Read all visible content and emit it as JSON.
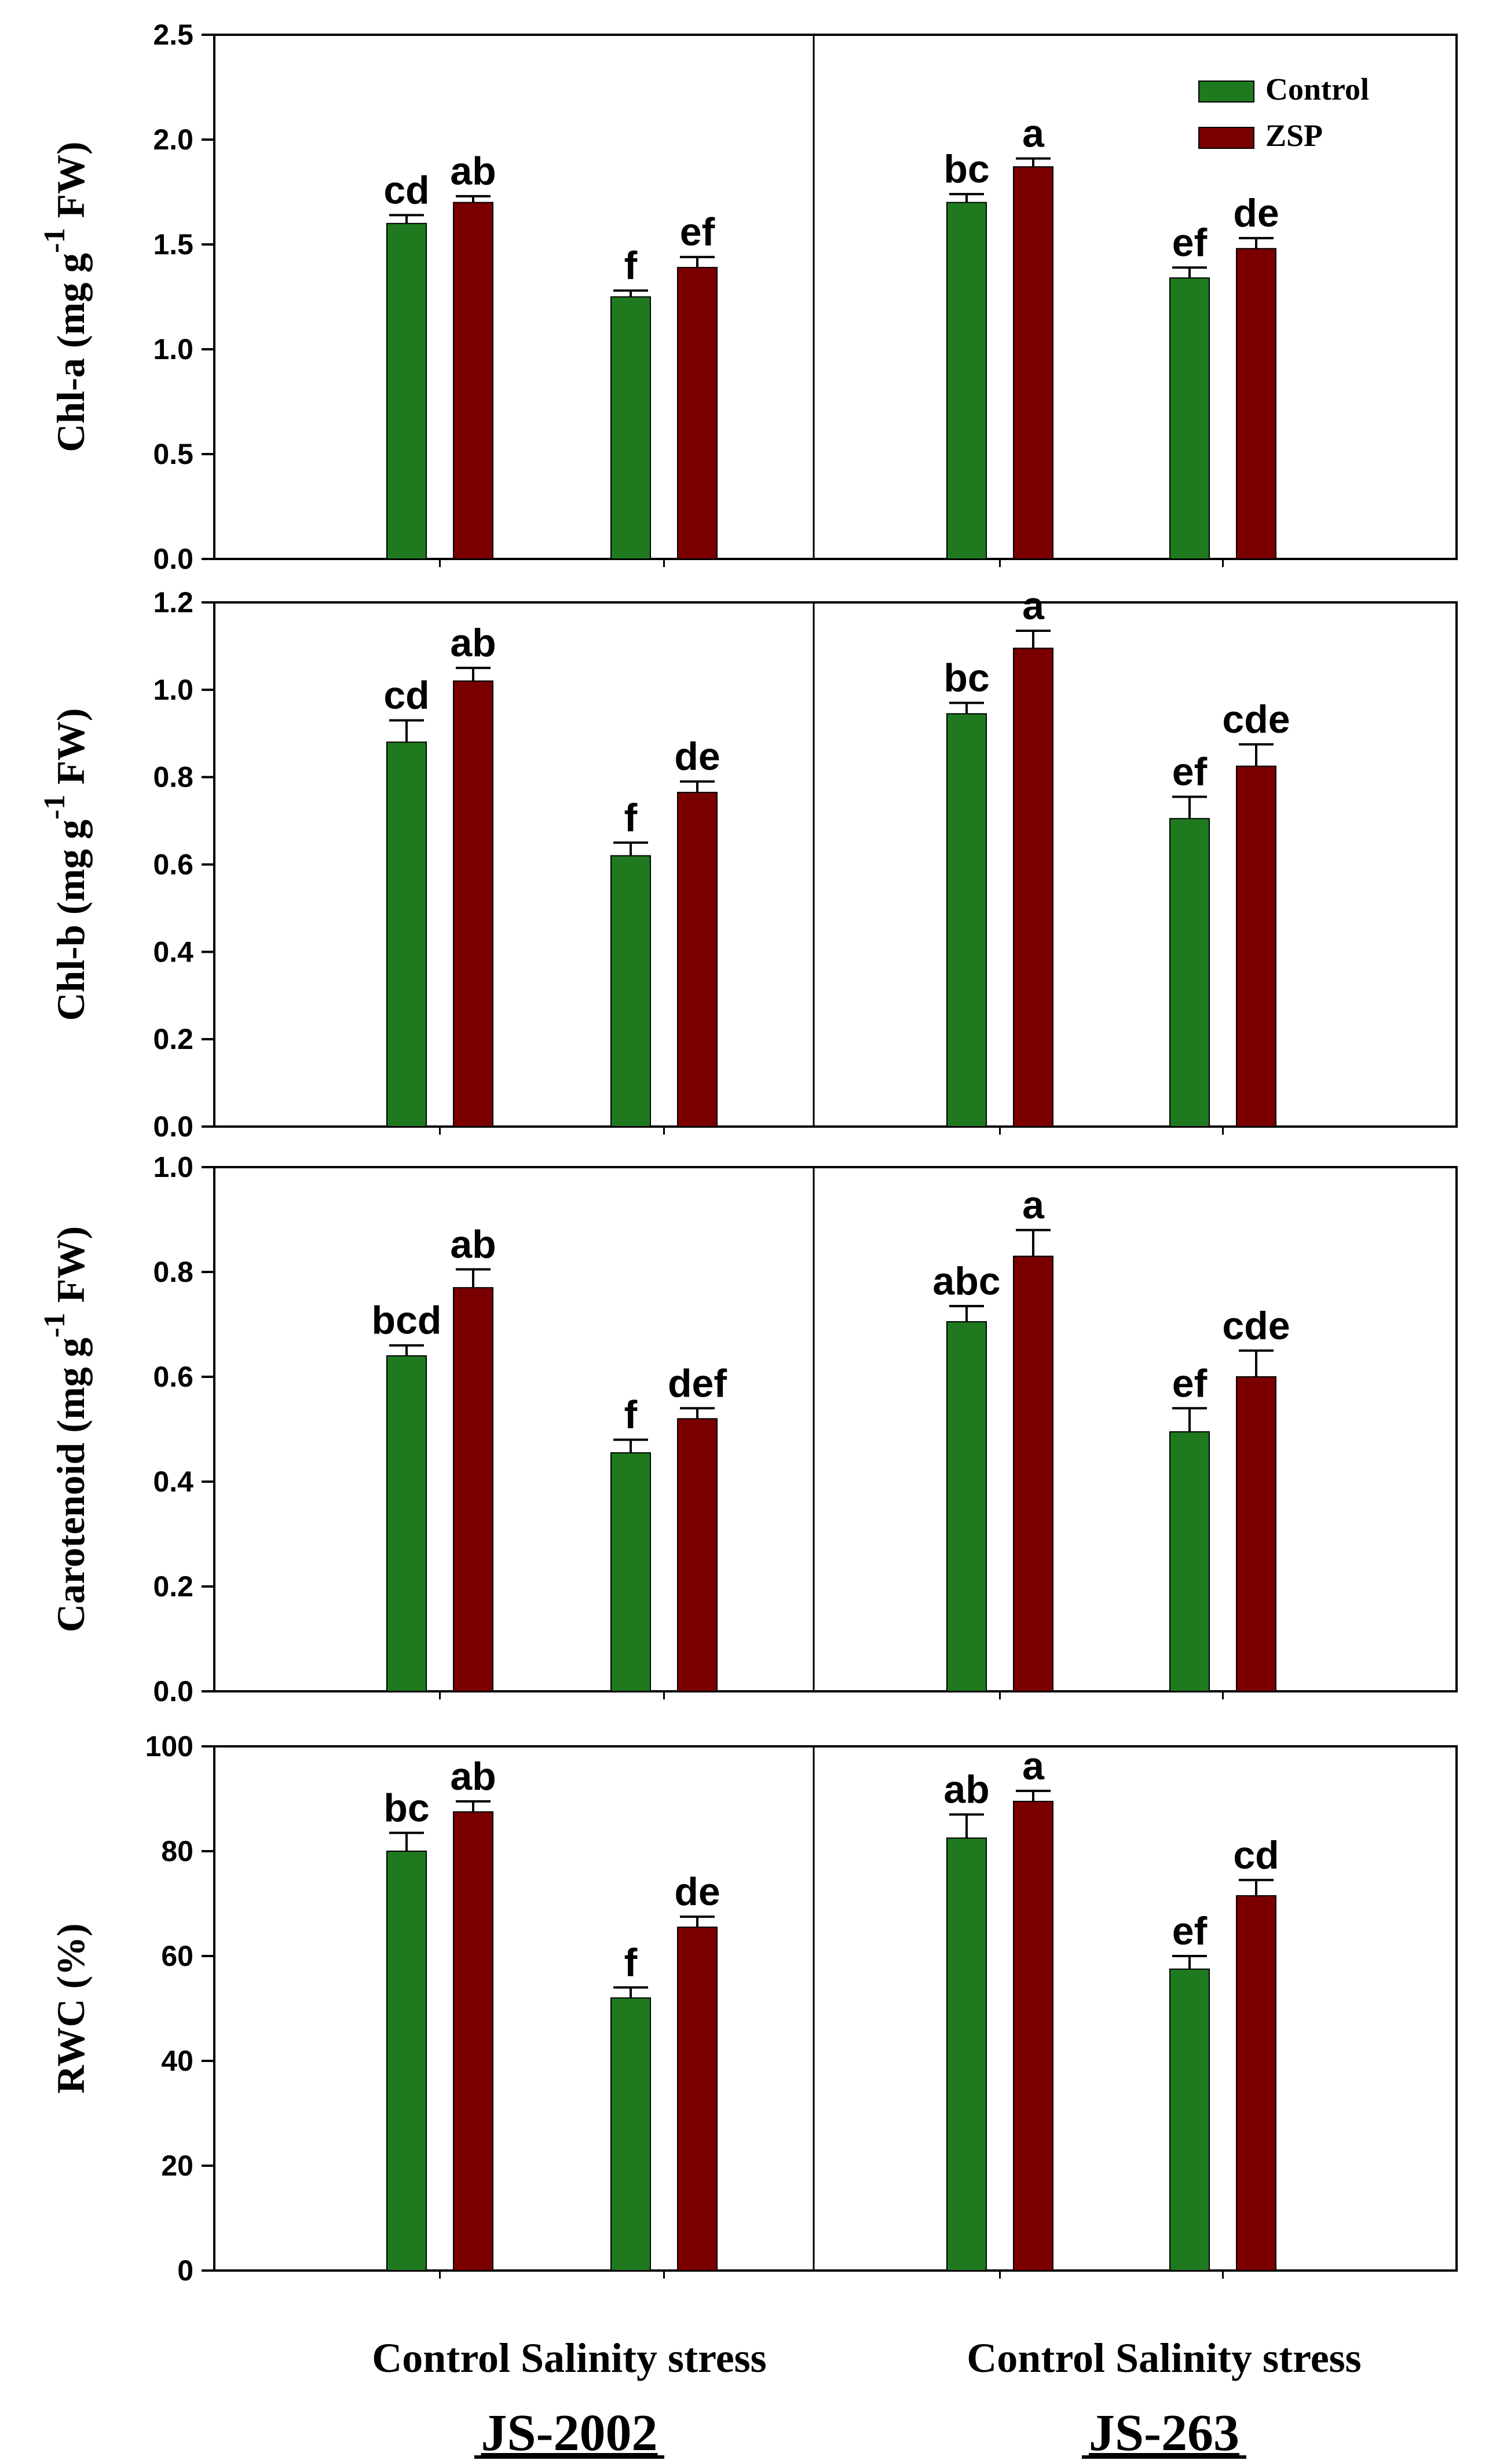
{
  "chart_data": {
    "type": "bar",
    "colors": {
      "Control": "#1f7a1f",
      "ZSP": "#7a0000",
      "axis": "#000000"
    },
    "legend": {
      "entries": [
        "Control",
        "ZSP"
      ],
      "position": "top-right"
    },
    "genotypes": [
      "JS-2002",
      "JS-263"
    ],
    "treatments": [
      "Control",
      "Salinity stress"
    ],
    "x_group_labels": [
      "Control Salinity stress",
      "Control Salinity stress"
    ],
    "panels": [
      {
        "ylabel_parts": [
          "Chl-a (mg g",
          "-1",
          " FW)"
        ],
        "ylim": [
          0,
          2.5
        ],
        "ticks": [
          "0.0",
          "0.5",
          "1.0",
          "1.5",
          "2.0",
          "2.5"
        ],
        "bars": [
          {
            "genotype": "JS-2002",
            "treatment": "Control",
            "series": "Control",
            "value": 1.6,
            "error": 0.04,
            "label": "cd"
          },
          {
            "genotype": "JS-2002",
            "treatment": "Control",
            "series": "ZSP",
            "value": 1.7,
            "error": 0.03,
            "label": "ab"
          },
          {
            "genotype": "JS-2002",
            "treatment": "Salinity stress",
            "series": "Control",
            "value": 1.25,
            "error": 0.03,
            "label": "f"
          },
          {
            "genotype": "JS-2002",
            "treatment": "Salinity stress",
            "series": "ZSP",
            "value": 1.39,
            "error": 0.05,
            "label": "ef"
          },
          {
            "genotype": "JS-263",
            "treatment": "Control",
            "series": "Control",
            "value": 1.7,
            "error": 0.04,
            "label": "bc"
          },
          {
            "genotype": "JS-263",
            "treatment": "Control",
            "series": "ZSP",
            "value": 1.87,
            "error": 0.04,
            "label": "a"
          },
          {
            "genotype": "JS-263",
            "treatment": "Salinity stress",
            "series": "Control",
            "value": 1.34,
            "error": 0.05,
            "label": "ef"
          },
          {
            "genotype": "JS-263",
            "treatment": "Salinity stress",
            "series": "ZSP",
            "value": 1.48,
            "error": 0.05,
            "label": "de"
          }
        ]
      },
      {
        "ylabel_parts": [
          "Chl-b (mg g",
          "-1",
          " FW)"
        ],
        "ylim": [
          0,
          1.2
        ],
        "ticks": [
          "0.0",
          "0.2",
          "0.4",
          "0.6",
          "0.8",
          "1.0",
          "1.2"
        ],
        "bars": [
          {
            "genotype": "JS-2002",
            "treatment": "Control",
            "series": "Control",
            "value": 0.88,
            "error": 0.05,
            "label": "cd"
          },
          {
            "genotype": "JS-2002",
            "treatment": "Control",
            "series": "ZSP",
            "value": 1.02,
            "error": 0.03,
            "label": "ab"
          },
          {
            "genotype": "JS-2002",
            "treatment": "Salinity stress",
            "series": "Control",
            "value": 0.62,
            "error": 0.03,
            "label": "f"
          },
          {
            "genotype": "JS-2002",
            "treatment": "Salinity stress",
            "series": "ZSP",
            "value": 0.765,
            "error": 0.025,
            "label": "de"
          },
          {
            "genotype": "JS-263",
            "treatment": "Control",
            "series": "Control",
            "value": 0.945,
            "error": 0.025,
            "label": "bc"
          },
          {
            "genotype": "JS-263",
            "treatment": "Control",
            "series": "ZSP",
            "value": 1.095,
            "error": 0.04,
            "label": "a"
          },
          {
            "genotype": "JS-263",
            "treatment": "Salinity stress",
            "series": "Control",
            "value": 0.705,
            "error": 0.05,
            "label": "ef"
          },
          {
            "genotype": "JS-263",
            "treatment": "Salinity stress",
            "series": "ZSP",
            "value": 0.825,
            "error": 0.05,
            "label": "cde"
          }
        ]
      },
      {
        "ylabel_parts": [
          "Carotenoid (mg g",
          "-1",
          " FW)"
        ],
        "ylim": [
          0,
          1.0
        ],
        "ticks": [
          "0.0",
          "0.2",
          "0.4",
          "0.6",
          "0.8",
          "1.0"
        ],
        "bars": [
          {
            "genotype": "JS-2002",
            "treatment": "Control",
            "series": "Control",
            "value": 0.64,
            "error": 0.02,
            "label": "bcd"
          },
          {
            "genotype": "JS-2002",
            "treatment": "Control",
            "series": "ZSP",
            "value": 0.77,
            "error": 0.035,
            "label": "ab"
          },
          {
            "genotype": "JS-2002",
            "treatment": "Salinity stress",
            "series": "Control",
            "value": 0.455,
            "error": 0.025,
            "label": "f"
          },
          {
            "genotype": "JS-2002",
            "treatment": "Salinity stress",
            "series": "ZSP",
            "value": 0.52,
            "error": 0.02,
            "label": "def"
          },
          {
            "genotype": "JS-263",
            "treatment": "Control",
            "series": "Control",
            "value": 0.705,
            "error": 0.03,
            "label": "abc"
          },
          {
            "genotype": "JS-263",
            "treatment": "Control",
            "series": "ZSP",
            "value": 0.83,
            "error": 0.05,
            "label": "a"
          },
          {
            "genotype": "JS-263",
            "treatment": "Salinity stress",
            "series": "Control",
            "value": 0.495,
            "error": 0.045,
            "label": "ef"
          },
          {
            "genotype": "JS-263",
            "treatment": "Salinity stress",
            "series": "ZSP",
            "value": 0.6,
            "error": 0.05,
            "label": "cde"
          }
        ]
      },
      {
        "ylabel_parts": [
          "RWC (%)"
        ],
        "ylim": [
          0,
          100
        ],
        "ticks": [
          "0",
          "20",
          "40",
          "60",
          "80",
          "100"
        ],
        "bars": [
          {
            "genotype": "JS-2002",
            "treatment": "Control",
            "series": "Control",
            "value": 80,
            "error": 3.5,
            "label": "bc"
          },
          {
            "genotype": "JS-2002",
            "treatment": "Control",
            "series": "ZSP",
            "value": 87.5,
            "error": 2,
            "label": "ab"
          },
          {
            "genotype": "JS-2002",
            "treatment": "Salinity stress",
            "series": "Control",
            "value": 52,
            "error": 2,
            "label": "f"
          },
          {
            "genotype": "JS-2002",
            "treatment": "Salinity stress",
            "series": "ZSP",
            "value": 65.5,
            "error": 2,
            "label": "de"
          },
          {
            "genotype": "JS-263",
            "treatment": "Control",
            "series": "Control",
            "value": 82.5,
            "error": 4.5,
            "label": "ab"
          },
          {
            "genotype": "JS-263",
            "treatment": "Control",
            "series": "ZSP",
            "value": 89.5,
            "error": 2,
            "label": "a"
          },
          {
            "genotype": "JS-263",
            "treatment": "Salinity stress",
            "series": "Control",
            "value": 57.5,
            "error": 2.5,
            "label": "ef"
          },
          {
            "genotype": "JS-263",
            "treatment": "Salinity stress",
            "series": "ZSP",
            "value": 71.5,
            "error": 3,
            "label": "cd"
          }
        ]
      }
    ]
  }
}
